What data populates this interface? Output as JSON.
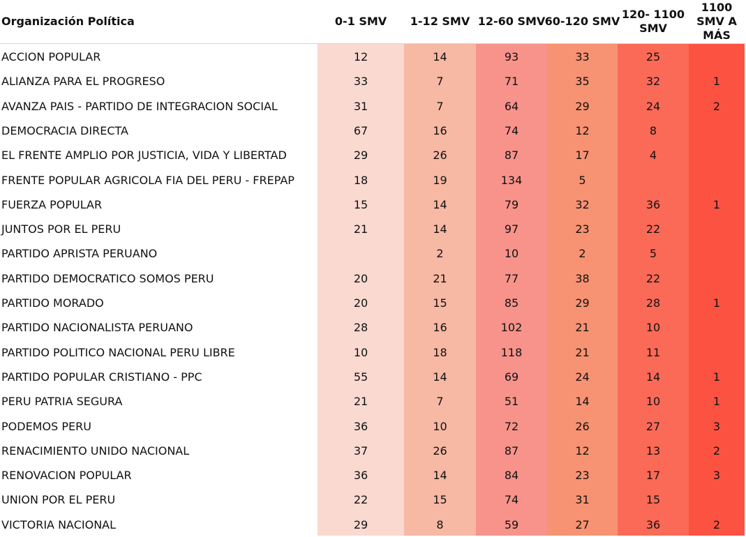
{
  "chart_data": {
    "type": "heatmap",
    "header_label": "Organización Política",
    "columns": [
      "0-1 SMV",
      "1-12 SMV",
      "12-60 SMV",
      "60-120 SMV",
      "120- 1100 SMV",
      "1100 SMV A MÁS"
    ],
    "column_colors": [
      "#f9d9d0",
      "#f7b8a4",
      "#f7938a",
      "#f79272",
      "#fb6a57",
      "#fb5242"
    ],
    "rows": [
      {
        "party": "ACCION POPULAR",
        "values": [
          12,
          14,
          93,
          33,
          25,
          null
        ]
      },
      {
        "party": "ALIANZA PARA EL PROGRESO",
        "values": [
          33,
          7,
          71,
          35,
          32,
          1
        ]
      },
      {
        "party": "AVANZA PAIS - PARTIDO DE INTEGRACION SOCIAL",
        "values": [
          31,
          7,
          64,
          29,
          24,
          2
        ]
      },
      {
        "party": "DEMOCRACIA DIRECTA",
        "values": [
          67,
          16,
          74,
          12,
          8,
          null
        ]
      },
      {
        "party": "EL FRENTE AMPLIO POR JUSTICIA, VIDA Y LIBERTAD",
        "values": [
          29,
          26,
          87,
          17,
          4,
          null
        ]
      },
      {
        "party": "FRENTE POPULAR AGRICOLA FIA DEL PERU - FREPAP",
        "values": [
          18,
          19,
          134,
          5,
          null,
          null
        ]
      },
      {
        "party": "FUERZA POPULAR",
        "values": [
          15,
          14,
          79,
          32,
          36,
          1
        ]
      },
      {
        "party": "JUNTOS POR EL PERU",
        "values": [
          21,
          14,
          97,
          23,
          22,
          null
        ]
      },
      {
        "party": "PARTIDO APRISTA PERUANO",
        "values": [
          null,
          2,
          10,
          2,
          5,
          null
        ]
      },
      {
        "party": "PARTIDO DEMOCRATICO SOMOS PERU",
        "values": [
          20,
          21,
          77,
          38,
          22,
          null
        ]
      },
      {
        "party": "PARTIDO MORADO",
        "values": [
          20,
          15,
          85,
          29,
          28,
          1
        ]
      },
      {
        "party": "PARTIDO NACIONALISTA PERUANO",
        "values": [
          28,
          16,
          102,
          21,
          10,
          null
        ]
      },
      {
        "party": "PARTIDO POLITICO NACIONAL PERU LIBRE",
        "values": [
          10,
          18,
          118,
          21,
          11,
          null
        ]
      },
      {
        "party": "PARTIDO POPULAR CRISTIANO - PPC",
        "values": [
          55,
          14,
          69,
          24,
          14,
          1
        ]
      },
      {
        "party": "PERU PATRIA SEGURA",
        "values": [
          21,
          7,
          51,
          14,
          10,
          1
        ]
      },
      {
        "party": "PODEMOS PERU",
        "values": [
          36,
          10,
          72,
          26,
          27,
          3
        ]
      },
      {
        "party": "RENACIMIENTO UNIDO NACIONAL",
        "values": [
          37,
          26,
          87,
          12,
          13,
          2
        ]
      },
      {
        "party": "RENOVACION POPULAR",
        "values": [
          36,
          14,
          84,
          23,
          17,
          3
        ]
      },
      {
        "party": "UNION POR EL PERU",
        "values": [
          22,
          15,
          74,
          31,
          15,
          null
        ]
      },
      {
        "party": "VICTORIA NACIONAL",
        "values": [
          29,
          8,
          59,
          27,
          36,
          2
        ]
      }
    ]
  }
}
